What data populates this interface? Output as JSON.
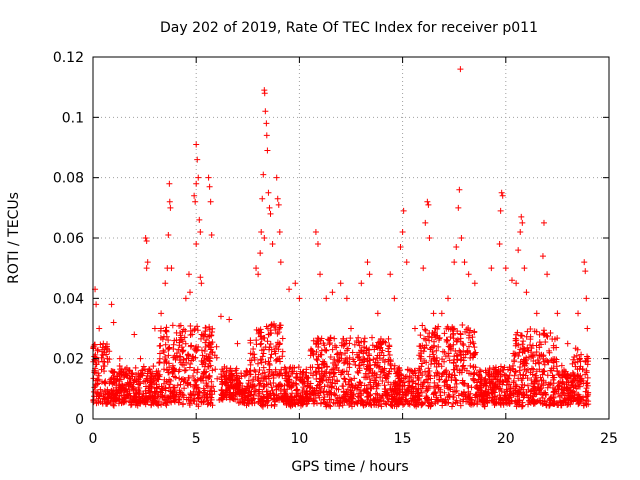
{
  "chart_data": {
    "type": "scatter",
    "title": "Day 202 of 2019, Rate Of TEC Index for receiver p011",
    "xlabel": "GPS time / hours",
    "ylabel": "ROTI / TECUs",
    "xlim": [
      0,
      25
    ],
    "ylim": [
      0,
      0.12
    ],
    "xticks": [
      "0",
      "5",
      "10",
      "15",
      "20",
      "25"
    ],
    "yticks": [
      "0",
      "0.02",
      "0.04",
      "0.06",
      "0.08",
      "0.1",
      "0.12"
    ],
    "grid": true,
    "marker": "plus",
    "color": "#ff0000",
    "x_range_of_data": [
      0,
      24
    ],
    "points": [
      [
        0.1,
        0.043
      ],
      [
        0.15,
        0.038
      ],
      [
        0.3,
        0.03
      ],
      [
        0.5,
        0.025
      ],
      [
        0.7,
        0.02
      ],
      [
        0.9,
        0.038
      ],
      [
        1.0,
        0.032
      ],
      [
        1.3,
        0.02
      ],
      [
        2.0,
        0.028
      ],
      [
        2.3,
        0.02
      ],
      [
        2.55,
        0.06
      ],
      [
        2.6,
        0.059
      ],
      [
        2.65,
        0.052
      ],
      [
        2.6,
        0.05
      ],
      [
        3.0,
        0.03
      ],
      [
        3.3,
        0.035
      ],
      [
        3.5,
        0.045
      ],
      [
        3.6,
        0.05
      ],
      [
        3.65,
        0.061
      ],
      [
        3.7,
        0.078
      ],
      [
        3.72,
        0.072
      ],
      [
        3.75,
        0.07
      ],
      [
        3.8,
        0.05
      ],
      [
        4.5,
        0.04
      ],
      [
        4.65,
        0.048
      ],
      [
        4.7,
        0.042
      ],
      [
        4.9,
        0.074
      ],
      [
        4.95,
        0.072
      ],
      [
        5.0,
        0.091
      ],
      [
        5.05,
        0.086
      ],
      [
        5.1,
        0.08
      ],
      [
        5.0,
        0.078
      ],
      [
        5.15,
        0.066
      ],
      [
        5.2,
        0.062
      ],
      [
        5.0,
        0.058
      ],
      [
        5.2,
        0.047
      ],
      [
        5.25,
        0.045
      ],
      [
        5.6,
        0.08
      ],
      [
        5.65,
        0.077
      ],
      [
        5.7,
        0.072
      ],
      [
        5.75,
        0.061
      ],
      [
        6.2,
        0.034
      ],
      [
        6.6,
        0.033
      ],
      [
        7.0,
        0.025
      ],
      [
        7.9,
        0.05
      ],
      [
        8.0,
        0.048
      ],
      [
        8.1,
        0.055
      ],
      [
        8.15,
        0.062
      ],
      [
        8.2,
        0.073
      ],
      [
        8.25,
        0.081
      ],
      [
        8.3,
        0.109
      ],
      [
        8.32,
        0.108
      ],
      [
        8.35,
        0.102
      ],
      [
        8.4,
        0.098
      ],
      [
        8.42,
        0.094
      ],
      [
        8.45,
        0.089
      ],
      [
        8.5,
        0.075
      ],
      [
        8.55,
        0.07
      ],
      [
        8.6,
        0.068
      ],
      [
        8.3,
        0.06
      ],
      [
        8.7,
        0.058
      ],
      [
        8.9,
        0.08
      ],
      [
        8.95,
        0.073
      ],
      [
        9.0,
        0.071
      ],
      [
        9.05,
        0.062
      ],
      [
        9.1,
        0.052
      ],
      [
        9.5,
        0.043
      ],
      [
        9.8,
        0.045
      ],
      [
        10.0,
        0.04
      ],
      [
        10.8,
        0.062
      ],
      [
        10.9,
        0.058
      ],
      [
        11.0,
        0.048
      ],
      [
        11.3,
        0.04
      ],
      [
        11.6,
        0.042
      ],
      [
        12.0,
        0.045
      ],
      [
        12.3,
        0.04
      ],
      [
        12.5,
        0.03
      ],
      [
        13.0,
        0.045
      ],
      [
        13.3,
        0.052
      ],
      [
        13.4,
        0.048
      ],
      [
        13.8,
        0.035
      ],
      [
        14.4,
        0.048
      ],
      [
        14.6,
        0.04
      ],
      [
        14.9,
        0.057
      ],
      [
        15.0,
        0.062
      ],
      [
        15.05,
        0.069
      ],
      [
        15.2,
        0.052
      ],
      [
        15.6,
        0.03
      ],
      [
        16.0,
        0.05
      ],
      [
        16.1,
        0.065
      ],
      [
        16.2,
        0.072
      ],
      [
        16.25,
        0.071
      ],
      [
        16.3,
        0.06
      ],
      [
        16.5,
        0.035
      ],
      [
        16.9,
        0.035
      ],
      [
        17.2,
        0.04
      ],
      [
        17.5,
        0.052
      ],
      [
        17.6,
        0.057
      ],
      [
        17.7,
        0.07
      ],
      [
        17.75,
        0.076
      ],
      [
        17.8,
        0.116
      ],
      [
        17.85,
        0.06
      ],
      [
        18.0,
        0.052
      ],
      [
        18.2,
        0.048
      ],
      [
        18.5,
        0.045
      ],
      [
        19.3,
        0.05
      ],
      [
        19.7,
        0.058
      ],
      [
        19.75,
        0.069
      ],
      [
        19.8,
        0.075
      ],
      [
        19.85,
        0.074
      ],
      [
        20.0,
        0.05
      ],
      [
        20.3,
        0.046
      ],
      [
        20.5,
        0.045
      ],
      [
        20.6,
        0.056
      ],
      [
        20.7,
        0.062
      ],
      [
        20.75,
        0.067
      ],
      [
        20.8,
        0.065
      ],
      [
        20.9,
        0.05
      ],
      [
        21.0,
        0.042
      ],
      [
        21.5,
        0.035
      ],
      [
        21.8,
        0.054
      ],
      [
        21.85,
        0.065
      ],
      [
        22.0,
        0.048
      ],
      [
        22.5,
        0.035
      ],
      [
        23.0,
        0.025
      ],
      [
        23.5,
        0.035
      ],
      [
        23.8,
        0.052
      ],
      [
        23.85,
        0.049
      ],
      [
        23.9,
        0.04
      ],
      [
        23.95,
        0.03
      ]
    ]
  }
}
